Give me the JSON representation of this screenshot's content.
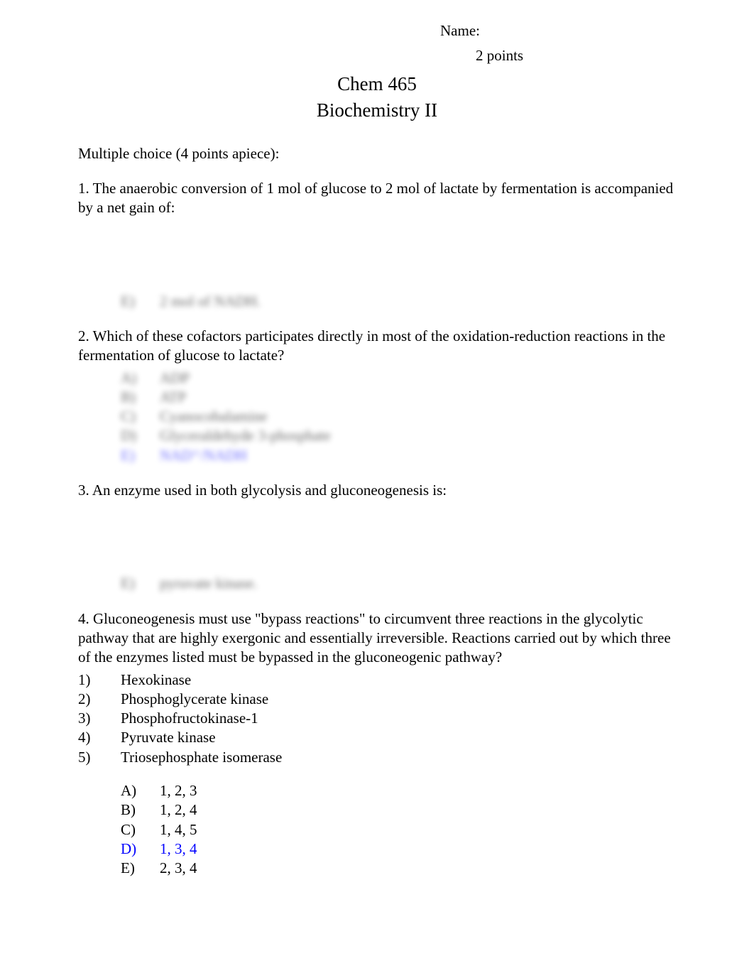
{
  "header": {
    "name_label": "Name:",
    "points": "2 points"
  },
  "title": "Chem 465",
  "subtitle": "Biochemistry II",
  "instructions": "Multiple choice (4 points apiece):",
  "q1": {
    "text": "1. The anaerobic conversion of 1 mol of glucose to 2 mol of lactate by fermentation is accompanied by a net gain of:",
    "hidden_e": "E)",
    "hidden_e_text": "2 mol of NADH."
  },
  "q2": {
    "text": "2. Which of these cofactors participates directly in most of the oxidation-reduction reactions in the fermentation of glucose to lactate?",
    "a": "A)",
    "a_text": "ADP",
    "b": "B)",
    "b_text": "ATP",
    "c": "C)",
    "c_text": "Cyanocobalamine",
    "d": "D)",
    "d_text": "Glyceraldehyde 3-phosphate",
    "e": "E)",
    "e_text": "NAD⁺/NADH"
  },
  "q3": {
    "text": "3. An enzyme used in both glycolysis and gluconeogenesis is:",
    "hidden_e": "E)",
    "hidden_e_text": "pyruvate kinase."
  },
  "q4": {
    "text": "4. Gluconeogenesis must use \"bypass reactions\" to circumvent three reactions in the glycolytic pathway that are highly exergonic and essentially irreversible.  Reactions carried out by which three of the enzymes listed must be bypassed in the gluconeogenic pathway?",
    "items": {
      "n1": "1)",
      "t1": "Hexokinase",
      "n2": "2)",
      "t2": "Phosphoglycerate kinase",
      "n3": "3)",
      "t3": "Phosphofructokinase-1",
      "n4": "4)",
      "t4": "Pyruvate kinase",
      "n5": "5)",
      "t5": "Triosephosphate isomerase"
    },
    "a": "A)",
    "a_text": "1, 2, 3",
    "b": "B)",
    "b_text": "1, 2, 4",
    "c": "C)",
    "c_text": "1, 4, 5",
    "d": "D)",
    "d_text": "1, 3, 4",
    "e": "E)",
    "e_text": "2, 3, 4"
  }
}
